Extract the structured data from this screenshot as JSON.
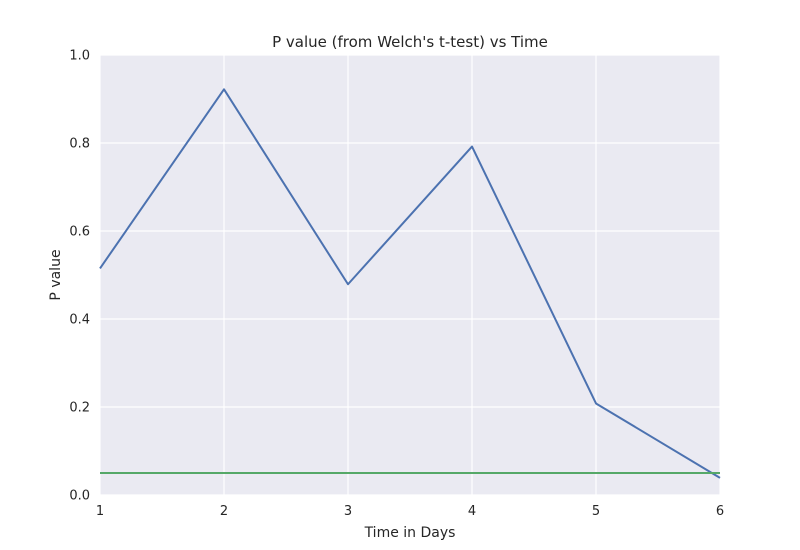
{
  "chart_data": {
    "type": "line",
    "title": "P value (from Welch's t-test) vs Time",
    "xlabel": "Time in Days",
    "ylabel": "P value",
    "xlim": [
      1,
      6
    ],
    "ylim": [
      0.0,
      1.0
    ],
    "xticks": [
      1,
      2,
      3,
      4,
      5,
      6
    ],
    "xtick_labels": [
      "1",
      "2",
      "3",
      "4",
      "5",
      "6"
    ],
    "yticks": [
      0.0,
      0.2,
      0.4,
      0.6,
      0.8,
      1.0
    ],
    "ytick_labels": [
      "0.0",
      "0.2",
      "0.4",
      "0.6",
      "0.8",
      "1.0"
    ],
    "grid": true,
    "background_color": "#EAEAF2",
    "grid_color": "#FFFFFF",
    "series": [
      {
        "color": "#4C72B0",
        "x": [
          1,
          2,
          3,
          4,
          5,
          6
        ],
        "y": [
          0.515,
          0.922,
          0.479,
          0.792,
          0.208,
          0.039
        ]
      },
      {
        "color": "#55A868",
        "x": [
          1,
          6
        ],
        "y": [
          0.05,
          0.05
        ]
      }
    ]
  }
}
